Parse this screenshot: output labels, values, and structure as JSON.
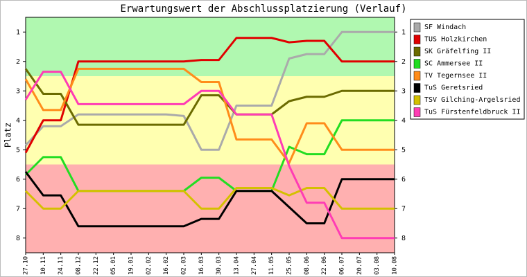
{
  "chart_data": {
    "type": "line",
    "title": "Erwartungswert der Abschlussplatzierung (Verlauf)",
    "y_label": "Platz",
    "categories": [
      "27.10",
      "10.11",
      "24.11",
      "08.12",
      "22.12",
      "05.01",
      "19.01",
      "02.02",
      "16.02",
      "02.03",
      "16.03",
      "30.03",
      "13.04",
      "27.04",
      "11.05",
      "25.05",
      "08.06",
      "22.06",
      "06.07",
      "20.07",
      "03.08",
      "10.08"
    ],
    "ylim": [
      0.5,
      8.5
    ],
    "y_inverted": true,
    "yticks": [
      1,
      2,
      3,
      4,
      5,
      6,
      7,
      8
    ],
    "bands": [
      {
        "from": 0.5,
        "to": 2.5,
        "color": "#b0f8b0"
      },
      {
        "from": 2.5,
        "to": 5.5,
        "color": "#ffffb0"
      },
      {
        "from": 5.5,
        "to": 8.5,
        "color": "#ffb0b0"
      }
    ],
    "legend": "right",
    "series": [
      {
        "name": "SF Windach",
        "color": "#aaaaaa",
        "values": [
          4.85,
          4.2,
          4.2,
          3.8,
          3.8,
          3.8,
          3.8,
          3.8,
          3.8,
          3.85,
          5.0,
          5.0,
          3.5,
          3.5,
          3.5,
          1.9,
          1.75,
          1.75,
          1.0,
          1.0,
          1.0,
          1.0
        ]
      },
      {
        "name": "TUS Holzkirchen",
        "color": "#e00000",
        "values": [
          5.1,
          4.0,
          4.0,
          2.0,
          2.0,
          2.0,
          2.0,
          2.0,
          2.0,
          2.0,
          1.95,
          1.95,
          1.2,
          1.2,
          1.2,
          1.35,
          1.3,
          1.3,
          2.0,
          2.0,
          2.0,
          2.0
        ]
      },
      {
        "name": "SK Gräfelfing II",
        "color": "#6b6b00",
        "values": [
          2.25,
          3.1,
          3.1,
          4.15,
          4.15,
          4.15,
          4.15,
          4.15,
          4.15,
          4.15,
          3.15,
          3.15,
          3.8,
          3.8,
          3.8,
          3.35,
          3.2,
          3.2,
          3.0,
          3.0,
          3.0,
          3.0
        ]
      },
      {
        "name": "SC Ammersee II",
        "color": "#22dd22",
        "values": [
          5.85,
          5.25,
          5.25,
          6.4,
          6.4,
          6.4,
          6.4,
          6.4,
          6.4,
          6.4,
          5.95,
          5.95,
          6.4,
          6.4,
          6.4,
          4.9,
          5.15,
          5.15,
          4.0,
          4.0,
          4.0,
          4.0
        ]
      },
      {
        "name": "TV Tegernsee II",
        "color": "#ff8c1a",
        "values": [
          2.6,
          3.65,
          3.65,
          2.25,
          2.25,
          2.25,
          2.25,
          2.25,
          2.25,
          2.25,
          2.7,
          2.7,
          4.65,
          4.65,
          4.65,
          5.45,
          4.1,
          4.1,
          5.0,
          5.0,
          5.0,
          5.0
        ]
      },
      {
        "name": "TuS Geretsried",
        "color": "#000000",
        "values": [
          5.75,
          6.55,
          6.55,
          7.6,
          7.6,
          7.6,
          7.6,
          7.6,
          7.6,
          7.6,
          7.35,
          7.35,
          6.4,
          6.4,
          6.4,
          6.95,
          7.5,
          7.5,
          6.0,
          6.0,
          6.0,
          6.0
        ]
      },
      {
        "name": "TSV Gilching-Argelsried",
        "color": "#d4c000",
        "values": [
          6.4,
          7.0,
          7.0,
          6.4,
          6.4,
          6.4,
          6.4,
          6.4,
          6.4,
          6.4,
          7.0,
          7.0,
          6.3,
          6.3,
          6.3,
          6.55,
          6.3,
          6.3,
          7.0,
          7.0,
          7.0,
          7.0
        ]
      },
      {
        "name": "TuS Fürstenfeldbruck II",
        "color": "#ff3cb4",
        "values": [
          3.3,
          2.35,
          2.35,
          3.45,
          3.45,
          3.45,
          3.45,
          3.45,
          3.45,
          3.45,
          3.0,
          3.0,
          3.8,
          3.8,
          3.8,
          5.55,
          6.8,
          6.8,
          8.0,
          8.0,
          8.0,
          8.0
        ]
      }
    ]
  }
}
